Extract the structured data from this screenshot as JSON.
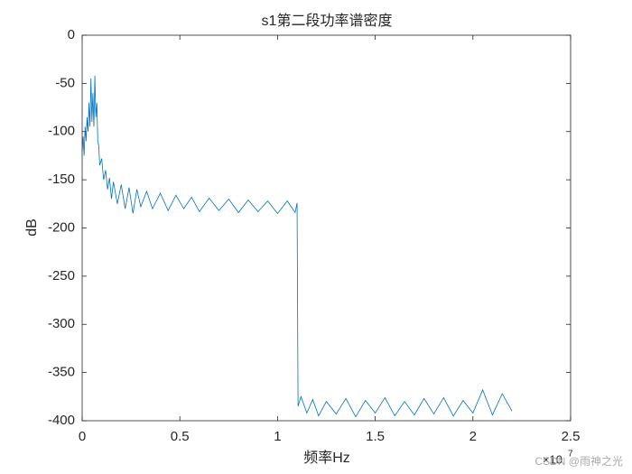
{
  "chart_data": {
    "type": "line",
    "title": "s1第二段功率谱密度",
    "xlabel": "频率Hz",
    "ylabel": "dB",
    "x_multiplier": "×10",
    "x_exponent": "7",
    "watermark": "CSDN @雨神之光",
    "xlim": [
      0,
      2.5
    ],
    "xticks": [
      0,
      0.5,
      1,
      1.5,
      2,
      2.5
    ],
    "ylim": [
      -400,
      0
    ],
    "yticks": [
      0,
      -50,
      -100,
      -150,
      -200,
      -250,
      -300,
      -350,
      -400
    ],
    "grid": false,
    "series": [
      {
        "color": "#0072bd",
        "x": [
          0,
          0.005,
          0.01,
          0.015,
          0.02,
          0.025,
          0.03,
          0.035,
          0.04,
          0.045,
          0.05,
          0.055,
          0.06,
          0.065,
          0.07,
          0.075,
          0.08,
          0.085,
          0.09,
          0.1,
          0.11,
          0.12,
          0.13,
          0.14,
          0.15,
          0.16,
          0.18,
          0.2,
          0.22,
          0.24,
          0.26,
          0.28,
          0.3,
          0.33,
          0.36,
          0.4,
          0.44,
          0.48,
          0.52,
          0.56,
          0.6,
          0.65,
          0.7,
          0.75,
          0.8,
          0.85,
          0.9,
          0.95,
          1.0,
          1.05,
          1.09,
          1.1,
          1.105,
          1.12,
          1.15,
          1.18,
          1.21,
          1.25,
          1.3,
          1.35,
          1.4,
          1.45,
          1.5,
          1.55,
          1.6,
          1.65,
          1.7,
          1.75,
          1.8,
          1.85,
          1.9,
          1.95,
          2.0,
          2.05,
          2.1,
          2.15,
          2.2
        ],
        "values": [
          -120,
          -105,
          -125,
          -95,
          -110,
          -85,
          -100,
          -70,
          -95,
          -45,
          -90,
          -60,
          -95,
          -42,
          -85,
          -70,
          -110,
          -115,
          -135,
          -128,
          -150,
          -140,
          -160,
          -148,
          -170,
          -152,
          -175,
          -155,
          -180,
          -158,
          -185,
          -160,
          -178,
          -162,
          -180,
          -164,
          -182,
          -166,
          -180,
          -168,
          -183,
          -169,
          -182,
          -170,
          -184,
          -171,
          -183,
          -172,
          -185,
          -172,
          -184,
          -174,
          -385,
          -375,
          -392,
          -378,
          -395,
          -380,
          -393,
          -377,
          -396,
          -379,
          -392,
          -376,
          -395,
          -380,
          -394,
          -377,
          -393,
          -376,
          -395,
          -379,
          -392,
          -368,
          -394,
          -372,
          -390
        ]
      }
    ]
  }
}
